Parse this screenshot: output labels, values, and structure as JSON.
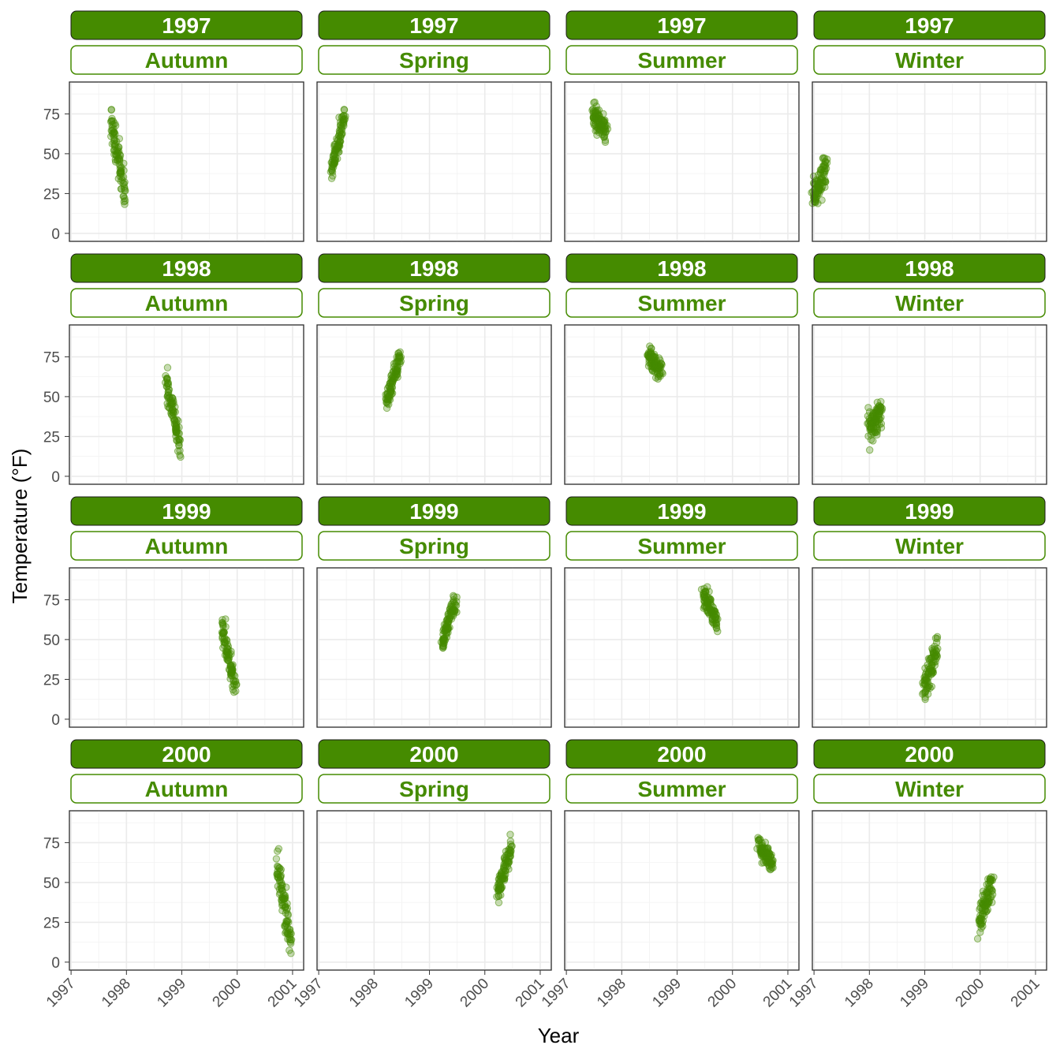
{
  "chart_data": {
    "type": "scatter",
    "xlabel": "Year",
    "ylabel": "Temperature (°F)",
    "xlim": [
      1996.97,
      2001.2
    ],
    "ylim": [
      -5,
      95
    ],
    "x_ticks": [
      1997,
      1998,
      1999,
      2000,
      2001
    ],
    "x_tick_labels": [
      "1997",
      "1998",
      "1999",
      "2000",
      "2001"
    ],
    "y_ticks": [
      0,
      25,
      50,
      75
    ],
    "y_tick_labels": [
      "0",
      "25",
      "50",
      "75"
    ],
    "grid": true,
    "colors": {
      "accent": "#458b00",
      "strip_text_top": "#ffffff"
    },
    "rows": [
      "1997",
      "1998",
      "1999",
      "2000"
    ],
    "cols": [
      "Autumn",
      "Spring",
      "Summer",
      "Winter"
    ],
    "panels": [
      {
        "year": "1997",
        "season": "Autumn",
        "x_range": [
          1997.72,
          1997.97
        ],
        "y_start": 72,
        "y_end": 25,
        "y_spread": 10
      },
      {
        "year": "1997",
        "season": "Spring",
        "x_range": [
          1997.22,
          1997.47
        ],
        "y_start": 38,
        "y_end": 76,
        "y_spread": 8
      },
      {
        "year": "1997",
        "season": "Summer",
        "x_range": [
          1997.47,
          1997.72
        ],
        "y_start": 76,
        "y_end": 64,
        "y_spread": 9
      },
      {
        "year": "1997",
        "season": "Winter",
        "x_range": [
          1996.98,
          1997.22
        ],
        "y_start": 22,
        "y_end": 40,
        "y_spread": 13
      },
      {
        "year": "1998",
        "season": "Autumn",
        "x_range": [
          1998.72,
          1998.97
        ],
        "y_start": 60,
        "y_end": 20,
        "y_spread": 9
      },
      {
        "year": "1998",
        "season": "Spring",
        "x_range": [
          1998.22,
          1998.47
        ],
        "y_start": 46,
        "y_end": 76,
        "y_spread": 7
      },
      {
        "year": "1998",
        "season": "Summer",
        "x_range": [
          1998.47,
          1998.72
        ],
        "y_start": 76,
        "y_end": 66,
        "y_spread": 7
      },
      {
        "year": "1998",
        "season": "Winter",
        "x_range": [
          1997.98,
          1998.22
        ],
        "y_start": 28,
        "y_end": 42,
        "y_spread": 11
      },
      {
        "year": "1999",
        "season": "Autumn",
        "x_range": [
          1999.72,
          1999.97
        ],
        "y_start": 58,
        "y_end": 20,
        "y_spread": 9
      },
      {
        "year": "1999",
        "season": "Spring",
        "x_range": [
          1999.22,
          1999.47
        ],
        "y_start": 47,
        "y_end": 74,
        "y_spread": 7
      },
      {
        "year": "1999",
        "season": "Summer",
        "x_range": [
          1999.47,
          1999.72
        ],
        "y_start": 80,
        "y_end": 60,
        "y_spread": 8
      },
      {
        "year": "1999",
        "season": "Winter",
        "x_range": [
          1998.98,
          1999.22
        ],
        "y_start": 18,
        "y_end": 44,
        "y_spread": 10
      },
      {
        "year": "2000",
        "season": "Autumn",
        "x_range": [
          2000.72,
          2000.97
        ],
        "y_start": 62,
        "y_end": 12,
        "y_spread": 10
      },
      {
        "year": "2000",
        "season": "Spring",
        "x_range": [
          2000.22,
          2000.47
        ],
        "y_start": 42,
        "y_end": 72,
        "y_spread": 8
      },
      {
        "year": "2000",
        "season": "Summer",
        "x_range": [
          2000.47,
          2000.72
        ],
        "y_start": 74,
        "y_end": 62,
        "y_spread": 7
      },
      {
        "year": "2000",
        "season": "Winter",
        "x_range": [
          1999.98,
          2000.22
        ],
        "y_start": 26,
        "y_end": 50,
        "y_spread": 11
      }
    ]
  }
}
